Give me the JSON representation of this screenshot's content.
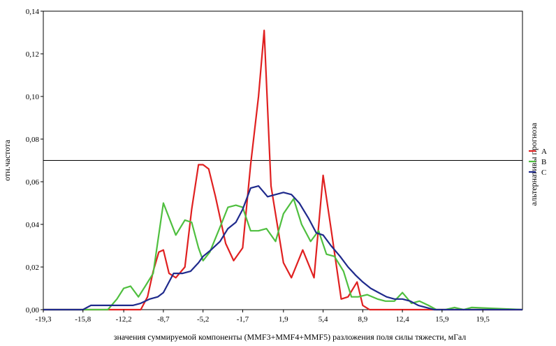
{
  "chart_data": {
    "type": "line",
    "xlabel": "значения суммируемой компоненты (MMF3+MMF4+MMF5) разложения поля силы тяжести, мГал",
    "ylabel": "отн.частота",
    "legend_title": "альтернативы прогноза",
    "legend_position": "right",
    "grid": false,
    "xlim": [
      -19.3,
      23.0
    ],
    "ylim": [
      0,
      0.14
    ],
    "x_ticks": [
      "-19,3",
      "-15,8",
      "-12,2",
      "-8,7",
      "-5,2",
      "-1,7",
      "1,9",
      "5,4",
      "8,9",
      "12,4",
      "15,9",
      "19,5"
    ],
    "x_tick_values": [
      -19.3,
      -15.8,
      -12.2,
      -8.7,
      -5.2,
      -1.7,
      1.9,
      5.4,
      8.9,
      12.4,
      15.9,
      19.5
    ],
    "y_ticks": [
      "0,00",
      "0,02",
      "0,04",
      "0,06",
      "0,08",
      "0,10",
      "0,12",
      "0,14"
    ],
    "y_tick_values": [
      0,
      0.02,
      0.04,
      0.06,
      0.08,
      0.1,
      0.12,
      0.14
    ],
    "reference_line": 0.07,
    "series": [
      {
        "name": "A",
        "color": "#e02020",
        "x": [
          -19.3,
          -10.7,
          -10.1,
          -9.6,
          -9.1,
          -8.7,
          -8.2,
          -7.6,
          -6.8,
          -6.2,
          -5.6,
          -5.2,
          -4.7,
          -4.1,
          -3.2,
          -2.5,
          -1.7,
          -1.0,
          -0.3,
          0.2,
          0.8,
          1.9,
          2.6,
          3.6,
          4.6,
          5.4,
          6.1,
          7.0,
          7.6,
          8.4,
          8.9,
          9.5,
          23.0
        ],
        "y": [
          0.0,
          0.0,
          0.006,
          0.018,
          0.027,
          0.028,
          0.017,
          0.015,
          0.02,
          0.047,
          0.068,
          0.068,
          0.066,
          0.053,
          0.031,
          0.023,
          0.029,
          0.068,
          0.1,
          0.131,
          0.058,
          0.022,
          0.015,
          0.028,
          0.015,
          0.063,
          0.038,
          0.005,
          0.006,
          0.013,
          0.002,
          0.0,
          0.0
        ]
      },
      {
        "name": "B",
        "color": "#4fbf3f",
        "x": [
          -19.3,
          -13.6,
          -12.8,
          -12.2,
          -11.6,
          -10.9,
          -10.3,
          -9.6,
          -8.7,
          -7.6,
          -6.8,
          -6.2,
          -5.6,
          -5.2,
          -4.6,
          -3.6,
          -3.0,
          -2.3,
          -1.7,
          -1.0,
          -0.3,
          0.4,
          1.2,
          1.9,
          2.8,
          3.5,
          4.3,
          5.0,
          5.7,
          6.4,
          7.2,
          7.9,
          8.5,
          9.3,
          10.2,
          10.9,
          11.7,
          12.4,
          13.2,
          13.9,
          14.7,
          15.4,
          16.2,
          17.0,
          17.8,
          18.5,
          23.0
        ],
        "y": [
          0.0,
          0.0,
          0.005,
          0.01,
          0.011,
          0.006,
          0.011,
          0.017,
          0.05,
          0.035,
          0.042,
          0.041,
          0.029,
          0.023,
          0.027,
          0.04,
          0.048,
          0.049,
          0.048,
          0.037,
          0.037,
          0.038,
          0.032,
          0.045,
          0.052,
          0.04,
          0.032,
          0.037,
          0.026,
          0.025,
          0.018,
          0.006,
          0.006,
          0.007,
          0.005,
          0.004,
          0.004,
          0.008,
          0.003,
          0.004,
          0.002,
          0.0,
          0.0,
          0.001,
          0.0,
          0.001,
          0.0
        ]
      },
      {
        "name": "C",
        "color": "#1f2a8c",
        "x": [
          -19.3,
          -15.8,
          -15.1,
          -14.3,
          -13.5,
          -12.8,
          -12.2,
          -11.4,
          -10.7,
          -9.9,
          -9.2,
          -8.7,
          -7.8,
          -7.0,
          -6.3,
          -5.6,
          -5.2,
          -4.5,
          -3.7,
          -3.0,
          -2.3,
          -1.7,
          -1.0,
          -0.3,
          0.5,
          1.2,
          1.9,
          2.6,
          3.3,
          4.1,
          4.8,
          5.4,
          6.1,
          6.9,
          7.6,
          8.3,
          8.9,
          9.6,
          10.3,
          11.0,
          11.7,
          12.4,
          13.1,
          13.8,
          14.5,
          15.2,
          23.0
        ],
        "y": [
          0.0,
          0.0,
          0.002,
          0.002,
          0.002,
          0.002,
          0.002,
          0.002,
          0.003,
          0.005,
          0.006,
          0.008,
          0.017,
          0.017,
          0.018,
          0.022,
          0.025,
          0.028,
          0.032,
          0.038,
          0.041,
          0.047,
          0.057,
          0.058,
          0.053,
          0.054,
          0.055,
          0.054,
          0.05,
          0.043,
          0.036,
          0.035,
          0.03,
          0.025,
          0.02,
          0.016,
          0.013,
          0.01,
          0.008,
          0.006,
          0.005,
          0.005,
          0.004,
          0.002,
          0.001,
          0.0,
          0.0
        ]
      }
    ]
  }
}
